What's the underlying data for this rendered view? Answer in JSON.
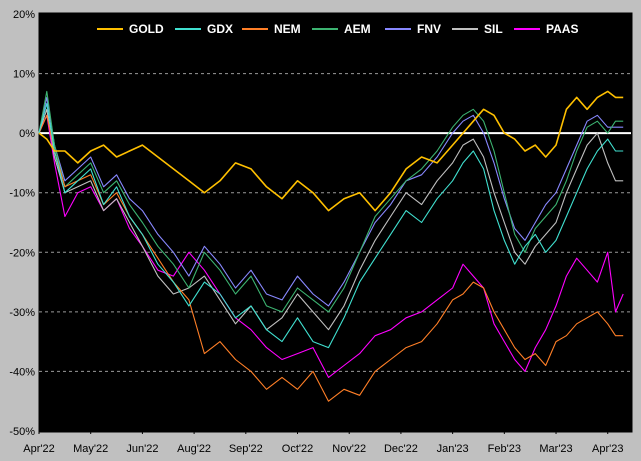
{
  "chart_data": {
    "type": "line",
    "title": "",
    "xlabel": "",
    "ylabel": "",
    "ylim": [
      -50,
      20
    ],
    "y_ticks": [
      {
        "value": 20,
        "label": "20%"
      },
      {
        "value": 10,
        "label": "10%"
      },
      {
        "value": 0,
        "label": "0%"
      },
      {
        "value": -10,
        "label": "-10%"
      },
      {
        "value": -20,
        "label": "-20%"
      },
      {
        "value": -30,
        "label": "-30%"
      },
      {
        "value": -40,
        "label": "-40%"
      },
      {
        "value": -50,
        "label": "-50%"
      }
    ],
    "x_months": [
      "Apr'22",
      "May'22",
      "Jun'22",
      "Aug'22",
      "Sep'22",
      "Oct'22",
      "Nov'22",
      "Dec'22",
      "Jan'23",
      "Feb'23",
      "Mar'23",
      "Apr'23"
    ],
    "x_ticks": [
      {
        "label": "Apr'22",
        "value": 0
      },
      {
        "label": "May'22",
        "value": 1
      },
      {
        "label": "Jun'22",
        "value": 2
      },
      {
        "label": "Aug'22",
        "value": 3
      },
      {
        "label": "Sep'22",
        "value": 4
      },
      {
        "label": "Oct'22",
        "value": 5
      },
      {
        "label": "Nov'22",
        "value": 6
      },
      {
        "label": "Dec'22",
        "value": 7
      },
      {
        "label": "Jan'23",
        "value": 8
      },
      {
        "label": "Feb'23",
        "value": 9
      },
      {
        "label": "Mar'23",
        "value": 10
      },
      {
        "label": "Apr'23",
        "value": 11
      }
    ],
    "xlim": [
      0,
      11.45
    ],
    "grid": true,
    "grid_style": "dashed",
    "zero_line": true,
    "background": "#000000",
    "legend_position": "top",
    "series": [
      {
        "name": "GOLD",
        "color": "#ffc000",
        "x": [
          0,
          0.15,
          0.3,
          0.5,
          0.75,
          1,
          1.25,
          1.5,
          1.75,
          2,
          2.3,
          2.6,
          2.9,
          3.2,
          3.5,
          3.8,
          4.1,
          4.4,
          4.7,
          5,
          5.3,
          5.6,
          5.9,
          6.2,
          6.5,
          6.8,
          7.1,
          7.4,
          7.7,
          8,
          8.2,
          8.4,
          8.6,
          8.8,
          9.0,
          9.2,
          9.4,
          9.6,
          9.8,
          10,
          10.2,
          10.4,
          10.6,
          10.8,
          11,
          11.15,
          11.3
        ],
        "y": [
          0,
          -1,
          -3,
          -3,
          -5,
          -3,
          -2,
          -4,
          -3,
          -2,
          -4,
          -6,
          -8,
          -10,
          -8,
          -5,
          -6,
          -9,
          -11,
          -8,
          -10,
          -13,
          -11,
          -10,
          -13,
          -10,
          -6,
          -4,
          -5,
          -2,
          0,
          2,
          4,
          3,
          0,
          -1,
          -3,
          -2,
          -4,
          -2,
          4,
          6,
          4,
          6,
          7,
          6,
          6
        ]
      },
      {
        "name": "GDX",
        "color": "#40e0d0",
        "x": [
          0,
          0.15,
          0.3,
          0.5,
          0.75,
          1,
          1.25,
          1.5,
          1.75,
          2,
          2.3,
          2.6,
          2.9,
          3.2,
          3.5,
          3.8,
          4.1,
          4.4,
          4.7,
          5,
          5.3,
          5.6,
          5.9,
          6.2,
          6.5,
          6.8,
          7.1,
          7.4,
          7.7,
          8,
          8.2,
          8.4,
          8.6,
          8.8,
          9.0,
          9.2,
          9.4,
          9.6,
          9.8,
          10,
          10.2,
          10.4,
          10.6,
          10.8,
          11,
          11.15,
          11.3
        ],
        "y": [
          0,
          5,
          -3,
          -10,
          -8,
          -6,
          -12,
          -9,
          -14,
          -17,
          -22,
          -25,
          -29,
          -25,
          -27,
          -31,
          -29,
          -33,
          -35,
          -31,
          -35,
          -36,
          -31,
          -25,
          -21,
          -17,
          -13,
          -15,
          -11,
          -8,
          -5,
          -3,
          -6,
          -13,
          -18,
          -22,
          -19,
          -17,
          -20,
          -18,
          -14,
          -10,
          -6,
          -3,
          -1,
          -3,
          -3
        ]
      },
      {
        "name": "NEM",
        "color": "#ff7f27",
        "x": [
          0,
          0.15,
          0.3,
          0.5,
          0.75,
          1,
          1.25,
          1.5,
          1.75,
          2,
          2.3,
          2.6,
          2.9,
          3.2,
          3.5,
          3.8,
          4.1,
          4.4,
          4.7,
          5,
          5.3,
          5.6,
          5.9,
          6.2,
          6.5,
          6.8,
          7.1,
          7.4,
          7.7,
          8,
          8.2,
          8.4,
          8.6,
          8.8,
          9.0,
          9.2,
          9.4,
          9.6,
          9.8,
          10,
          10.2,
          10.4,
          10.6,
          10.8,
          11,
          11.15,
          11.3
        ],
        "y": [
          0,
          3,
          -3,
          -9,
          -8,
          -7,
          -12,
          -10,
          -14,
          -17,
          -21,
          -25,
          -28,
          -37,
          -35,
          -38,
          -40,
          -43,
          -41,
          -43,
          -40,
          -45,
          -43,
          -44,
          -40,
          -38,
          -36,
          -35,
          -32,
          -28,
          -27,
          -25,
          -26,
          -30,
          -33,
          -36,
          -38,
          -37,
          -39,
          -35,
          -34,
          -32,
          -31,
          -30,
          -32,
          -34,
          -34
        ]
      },
      {
        "name": "AEM",
        "color": "#3cb371",
        "x": [
          0,
          0.15,
          0.3,
          0.5,
          0.75,
          1,
          1.25,
          1.5,
          1.75,
          2,
          2.3,
          2.6,
          2.9,
          3.2,
          3.5,
          3.8,
          4.1,
          4.4,
          4.7,
          5,
          5.3,
          5.6,
          5.9,
          6.2,
          6.5,
          6.8,
          7.1,
          7.4,
          7.7,
          8,
          8.2,
          8.4,
          8.6,
          8.8,
          9.0,
          9.2,
          9.4,
          9.6,
          9.8,
          10,
          10.2,
          10.4,
          10.6,
          10.8,
          11,
          11.15,
          11.3
        ],
        "y": [
          0,
          7,
          -2,
          -9,
          -7,
          -5,
          -10,
          -8,
          -12,
          -15,
          -19,
          -22,
          -26,
          -20,
          -23,
          -27,
          -24,
          -29,
          -30,
          -26,
          -28,
          -30,
          -26,
          -20,
          -14,
          -11,
          -8,
          -6,
          -3,
          1,
          3,
          4,
          2,
          -3,
          -10,
          -17,
          -20,
          -16,
          -14,
          -12,
          -8,
          -3,
          1,
          2,
          0,
          2,
          2
        ]
      },
      {
        "name": "FNV",
        "color": "#8888ff",
        "x": [
          0,
          0.15,
          0.3,
          0.5,
          0.75,
          1,
          1.25,
          1.5,
          1.75,
          2,
          2.3,
          2.6,
          2.9,
          3.2,
          3.5,
          3.8,
          4.1,
          4.4,
          4.7,
          5,
          5.3,
          5.6,
          5.9,
          6.2,
          6.5,
          6.8,
          7.1,
          7.4,
          7.7,
          8,
          8.2,
          8.4,
          8.6,
          8.8,
          9.0,
          9.2,
          9.4,
          9.6,
          9.8,
          10,
          10.2,
          10.4,
          10.6,
          10.8,
          11,
          11.15,
          11.3
        ],
        "y": [
          0,
          6,
          -2,
          -8,
          -6,
          -4,
          -9,
          -7,
          -11,
          -13,
          -17,
          -20,
          -24,
          -19,
          -22,
          -26,
          -23,
          -27,
          -28,
          -24,
          -27,
          -29,
          -25,
          -20,
          -15,
          -12,
          -8,
          -7,
          -4,
          0,
          2,
          3,
          0,
          -5,
          -11,
          -16,
          -18,
          -15,
          -12,
          -10,
          -6,
          -2,
          2,
          3,
          1,
          1,
          1
        ]
      },
      {
        "name": "SIL",
        "color": "#c0c0c0",
        "x": [
          0,
          0.15,
          0.3,
          0.5,
          0.75,
          1,
          1.25,
          1.5,
          1.75,
          2,
          2.3,
          2.6,
          2.9,
          3.2,
          3.5,
          3.8,
          4.1,
          4.4,
          4.7,
          5,
          5.3,
          5.6,
          5.9,
          6.2,
          6.5,
          6.8,
          7.1,
          7.4,
          7.7,
          8,
          8.2,
          8.4,
          8.6,
          8.8,
          9.0,
          9.2,
          9.4,
          9.6,
          9.8,
          10,
          10.2,
          10.4,
          10.6,
          10.8,
          11,
          11.15,
          11.3
        ],
        "y": [
          0,
          4,
          -4,
          -10,
          -9,
          -8,
          -13,
          -11,
          -15,
          -19,
          -24,
          -27,
          -26,
          -24,
          -28,
          -32,
          -29,
          -33,
          -31,
          -27,
          -30,
          -33,
          -29,
          -23,
          -18,
          -14,
          -10,
          -12,
          -8,
          -5,
          -2,
          -1,
          -4,
          -10,
          -15,
          -20,
          -22,
          -19,
          -17,
          -15,
          -10,
          -6,
          -2,
          0,
          -5,
          -8,
          -8
        ]
      },
      {
        "name": "PAAS",
        "color": "#ff00ff",
        "x": [
          0,
          0.15,
          0.3,
          0.5,
          0.75,
          1,
          1.25,
          1.5,
          1.75,
          2,
          2.3,
          2.6,
          2.9,
          3.2,
          3.5,
          3.8,
          4.1,
          4.4,
          4.7,
          5,
          5.3,
          5.6,
          5.9,
          6.2,
          6.5,
          6.8,
          7.1,
          7.4,
          7.7,
          8,
          8.2,
          8.4,
          8.6,
          8.8,
          9.0,
          9.2,
          9.4,
          9.6,
          9.8,
          10,
          10.2,
          10.4,
          10.6,
          10.8,
          11,
          11.15,
          11.3
        ],
        "y": [
          0,
          3,
          -5,
          -14,
          -10,
          -9,
          -13,
          -11,
          -16,
          -19,
          -23,
          -24,
          -20,
          -23,
          -27,
          -31,
          -33,
          -36,
          -38,
          -37,
          -36,
          -41,
          -39,
          -37,
          -34,
          -33,
          -31,
          -30,
          -28,
          -26,
          -22,
          -24,
          -26,
          -32,
          -35,
          -38,
          -40,
          -36,
          -33,
          -29,
          -24,
          -21,
          -23,
          -25,
          -20,
          -30,
          -27
        ]
      }
    ]
  }
}
